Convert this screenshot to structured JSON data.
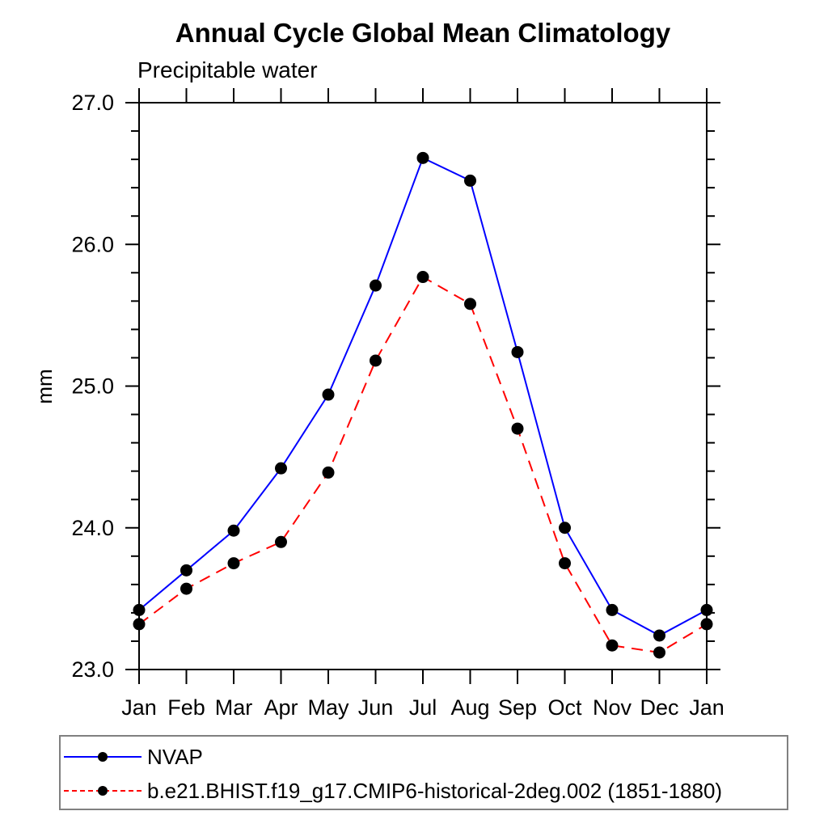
{
  "chart_data": {
    "type": "line",
    "title": "Annual Cycle Global Mean Climatology",
    "subtitle": "Precipitable water",
    "xlabel": "",
    "ylabel": "mm",
    "ylim": [
      23.0,
      27.0
    ],
    "ytick_labels": [
      "23.0",
      "24.0",
      "25.0",
      "26.0",
      "27.0"
    ],
    "ytick_minor_step": 0.2,
    "grid": false,
    "legend_position": "bottom-outside",
    "frame_box": true,
    "tick_direction": "out",
    "categories": [
      "Jan",
      "Feb",
      "Mar",
      "Apr",
      "May",
      "Jun",
      "Jul",
      "Aug",
      "Sep",
      "Oct",
      "Nov",
      "Dec",
      "Jan"
    ],
    "series": [
      {
        "name": "NVAP",
        "line_color": "#0000ff",
        "line_style": "solid",
        "marker": "filled-circle",
        "marker_color": "#000000",
        "values": [
          23.42,
          23.7,
          23.98,
          24.42,
          24.94,
          25.71,
          26.61,
          26.45,
          25.24,
          24.0,
          23.42,
          23.24,
          23.42
        ]
      },
      {
        "name": "b.e21.BHIST.f19_g17.CMIP6-historical-2deg.002 (1851-1880)",
        "line_color": "#ff0000",
        "line_style": "dashed",
        "marker": "filled-circle",
        "marker_color": "#000000",
        "values": [
          23.32,
          23.57,
          23.75,
          23.9,
          24.39,
          25.18,
          25.77,
          25.58,
          24.7,
          23.75,
          23.17,
          23.12,
          23.32
        ]
      }
    ]
  }
}
